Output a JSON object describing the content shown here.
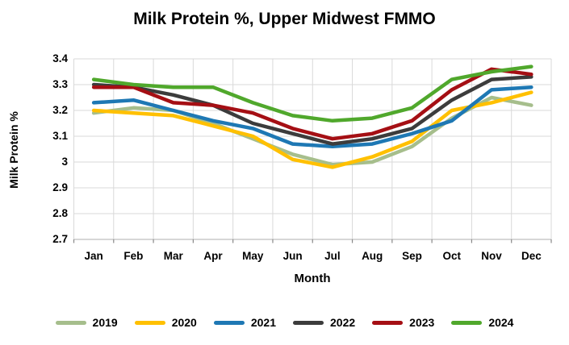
{
  "chart": {
    "title": "Milk Protein %, Upper Midwest FMMO",
    "xlabel": "Month",
    "ylabel": "Milk Protein %"
  },
  "chart_data": {
    "type": "line",
    "title": "Milk Protein %, Upper Midwest FMMO",
    "xlabel": "Month",
    "ylabel": "Milk Protein %",
    "categories": [
      "Jan",
      "Feb",
      "Mar",
      "Apr",
      "May",
      "Jun",
      "Jul",
      "Aug",
      "Sep",
      "Oct",
      "Nov",
      "Dec"
    ],
    "ylim": [
      2.7,
      3.4
    ],
    "ytick_step": 0.1,
    "ytick_labels": [
      "2.7",
      "2.8",
      "2.9",
      "3",
      "3.1",
      "3.2",
      "3.3",
      "3.4"
    ],
    "grid": true,
    "legend_position": "bottom",
    "gridline_color": "#D9D9D9",
    "axis_line_color": "#BFBFBF",
    "tick_mark_color": "#898989",
    "series": [
      {
        "name": "2019",
        "color": "#A6BE8C",
        "values": [
          3.19,
          3.21,
          3.2,
          3.15,
          3.09,
          3.03,
          2.99,
          3.0,
          3.06,
          3.17,
          3.25,
          3.22
        ]
      },
      {
        "name": "2020",
        "color": "#FFC000",
        "values": [
          3.2,
          3.19,
          3.18,
          3.14,
          3.1,
          3.01,
          2.98,
          3.02,
          3.08,
          3.2,
          3.23,
          3.27
        ]
      },
      {
        "name": "2021",
        "color": "#1E78B4",
        "values": [
          3.23,
          3.24,
          3.2,
          3.16,
          3.13,
          3.07,
          3.06,
          3.07,
          3.11,
          3.16,
          3.28,
          3.29
        ]
      },
      {
        "name": "2022",
        "color": "#3C3C3C",
        "values": [
          3.3,
          3.29,
          3.26,
          3.22,
          3.15,
          3.11,
          3.07,
          3.09,
          3.13,
          3.24,
          3.32,
          3.33
        ]
      },
      {
        "name": "2023",
        "color": "#A50F14",
        "values": [
          3.29,
          3.29,
          3.23,
          3.22,
          3.19,
          3.13,
          3.09,
          3.11,
          3.16,
          3.28,
          3.36,
          3.34
        ]
      },
      {
        "name": "2024",
        "color": "#50A82C",
        "values": [
          3.32,
          3.3,
          3.29,
          3.29,
          3.23,
          3.18,
          3.16,
          3.17,
          3.21,
          3.32,
          3.35,
          3.37
        ]
      }
    ]
  }
}
